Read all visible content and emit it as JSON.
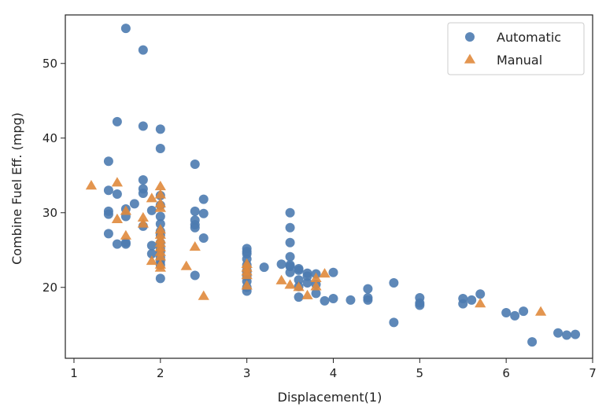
{
  "chart_data": {
    "type": "scatter",
    "xlabel": "Displacement(1)",
    "ylabel": "Combine Fuel Eff. (mpg)",
    "xlim": [
      0.9,
      7.0
    ],
    "ylim": [
      10.5,
      56.5
    ],
    "xticks": [
      1,
      2,
      3,
      4,
      5,
      6,
      7
    ],
    "yticks": [
      20,
      30,
      40,
      50
    ],
    "grid": false,
    "legend_position": "top-right",
    "series": [
      {
        "name": "Automatic",
        "marker": "circle",
        "color": "#4c7bb0",
        "points": [
          [
            1.6,
            54.7
          ],
          [
            1.8,
            51.8
          ],
          [
            1.5,
            42.2
          ],
          [
            1.8,
            41.6
          ],
          [
            2.0,
            41.2
          ],
          [
            2.0,
            38.6
          ],
          [
            1.4,
            36.9
          ],
          [
            2.4,
            36.5
          ],
          [
            1.8,
            34.4
          ],
          [
            1.4,
            33.0
          ],
          [
            1.8,
            33.2
          ],
          [
            1.5,
            32.5
          ],
          [
            1.8,
            32.6
          ],
          [
            2.0,
            32.3
          ],
          [
            2.5,
            31.8
          ],
          [
            1.7,
            31.2
          ],
          [
            2.0,
            31.0
          ],
          [
            1.6,
            30.5
          ],
          [
            1.4,
            30.2
          ],
          [
            1.4,
            29.8
          ],
          [
            1.6,
            29.5
          ],
          [
            1.9,
            30.3
          ],
          [
            2.4,
            30.2
          ],
          [
            2.5,
            29.9
          ],
          [
            2.0,
            29.5
          ],
          [
            2.4,
            29.0
          ],
          [
            2.4,
            28.4
          ],
          [
            2.4,
            28.0
          ],
          [
            1.8,
            28.2
          ],
          [
            2.0,
            28.5
          ],
          [
            2.0,
            27.5
          ],
          [
            1.4,
            27.2
          ],
          [
            2.0,
            27.0
          ],
          [
            2.5,
            26.6
          ],
          [
            1.6,
            26.0
          ],
          [
            1.5,
            25.8
          ],
          [
            1.6,
            25.8
          ],
          [
            2.0,
            26.0
          ],
          [
            1.9,
            25.6
          ],
          [
            2.0,
            25.2
          ],
          [
            2.0,
            24.8
          ],
          [
            1.9,
            24.5
          ],
          [
            2.0,
            24.0
          ],
          [
            2.0,
            23.5
          ],
          [
            2.4,
            21.6
          ],
          [
            2.0,
            21.2
          ],
          [
            2.0,
            23.0
          ],
          [
            3.0,
            25.2
          ],
          [
            3.0,
            24.5
          ],
          [
            3.0,
            23.8
          ],
          [
            3.0,
            23.0
          ],
          [
            3.0,
            22.3
          ],
          [
            3.0,
            21.5
          ],
          [
            3.0,
            20.8
          ],
          [
            3.0,
            20.0
          ],
          [
            3.0,
            19.5
          ],
          [
            3.0,
            24.8
          ],
          [
            3.0,
            22.0
          ],
          [
            3.2,
            22.7
          ],
          [
            3.4,
            23.1
          ],
          [
            3.5,
            22.8
          ],
          [
            3.5,
            23.0
          ],
          [
            3.6,
            22.5
          ],
          [
            3.5,
            30.0
          ],
          [
            3.5,
            28.0
          ],
          [
            3.5,
            26.0
          ],
          [
            3.5,
            24.1
          ],
          [
            3.5,
            22.0
          ],
          [
            3.6,
            22.3
          ],
          [
            3.6,
            21.0
          ],
          [
            3.7,
            21.5
          ],
          [
            3.6,
            20.1
          ],
          [
            3.6,
            18.7
          ],
          [
            3.7,
            21.9
          ],
          [
            3.7,
            20.6
          ],
          [
            3.8,
            21.8
          ],
          [
            3.8,
            20.4
          ],
          [
            3.8,
            19.2
          ],
          [
            3.9,
            18.2
          ],
          [
            4.0,
            22.0
          ],
          [
            4.0,
            18.5
          ],
          [
            4.2,
            18.3
          ],
          [
            4.4,
            19.8
          ],
          [
            4.4,
            18.6
          ],
          [
            4.4,
            18.3
          ],
          [
            4.7,
            20.6
          ],
          [
            4.7,
            15.3
          ],
          [
            5.0,
            18.6
          ],
          [
            5.0,
            17.9
          ],
          [
            5.0,
            17.6
          ],
          [
            5.5,
            18.5
          ],
          [
            5.5,
            17.8
          ],
          [
            5.6,
            18.3
          ],
          [
            5.7,
            19.1
          ],
          [
            6.0,
            16.6
          ],
          [
            6.1,
            16.2
          ],
          [
            6.2,
            16.8
          ],
          [
            6.3,
            12.7
          ],
          [
            6.6,
            13.9
          ],
          [
            6.7,
            13.6
          ],
          [
            6.8,
            13.7
          ]
        ]
      },
      {
        "name": "Manual",
        "marker": "triangle",
        "color": "#e08a3c",
        "points": [
          [
            1.2,
            33.6
          ],
          [
            1.5,
            34.0
          ],
          [
            1.6,
            30.2
          ],
          [
            1.5,
            29.1
          ],
          [
            1.6,
            26.9
          ],
          [
            1.8,
            29.3
          ],
          [
            1.8,
            28.5
          ],
          [
            2.0,
            33.5
          ],
          [
            2.0,
            32.4
          ],
          [
            1.9,
            31.9
          ],
          [
            2.0,
            31.2
          ],
          [
            2.0,
            30.6
          ],
          [
            2.0,
            27.7
          ],
          [
            2.0,
            27.0
          ],
          [
            2.0,
            26.4
          ],
          [
            2.0,
            25.9
          ],
          [
            2.0,
            25.3
          ],
          [
            2.0,
            24.7
          ],
          [
            2.0,
            24.1
          ],
          [
            1.9,
            23.5
          ],
          [
            2.0,
            23.0
          ],
          [
            2.0,
            22.6
          ],
          [
            2.3,
            22.8
          ],
          [
            2.4,
            25.4
          ],
          [
            2.5,
            18.8
          ],
          [
            3.0,
            23.1
          ],
          [
            3.0,
            22.6
          ],
          [
            3.0,
            22.1
          ],
          [
            3.0,
            21.6
          ],
          [
            3.0,
            20.2
          ],
          [
            3.4,
            20.9
          ],
          [
            3.6,
            20.0
          ],
          [
            3.5,
            20.3
          ],
          [
            3.7,
            18.9
          ],
          [
            3.8,
            20.1
          ],
          [
            3.8,
            21.2
          ],
          [
            3.9,
            21.8
          ],
          [
            5.7,
            17.8
          ],
          [
            6.4,
            16.7
          ]
        ]
      }
    ]
  }
}
